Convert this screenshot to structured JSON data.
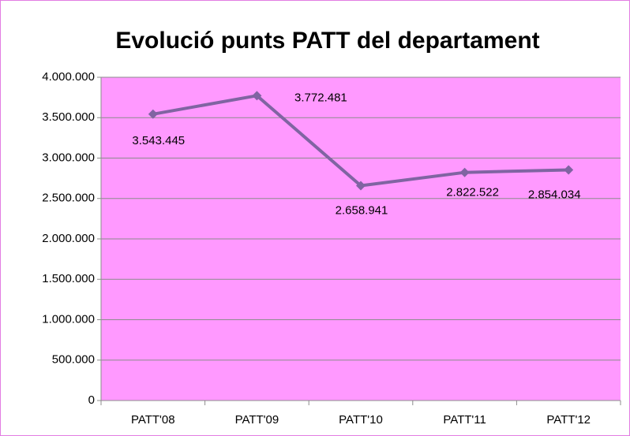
{
  "chart_data": {
    "type": "line",
    "title": "Evolució punts PATT del departament",
    "categories": [
      "PATT'08",
      "PATT'09",
      "PATT'10",
      "PATT'11",
      "PATT'12"
    ],
    "values": [
      3543445,
      3772481,
      2658941,
      2822522,
      2854034
    ],
    "value_labels": [
      "3.543.445",
      "3.772.481",
      "2.658.941",
      "2.822.522",
      "2.854.034"
    ],
    "color": "#8064a2",
    "plot_background": "#ff99ff",
    "grid": true,
    "ylim": [
      0,
      4000000
    ],
    "yticks": [
      0,
      {
        "value": 500000,
        "label": "500.000"
      },
      {
        "value": 1000000,
        "label": "1.000.000"
      },
      {
        "value": 1500000,
        "label": "1.500.000"
      },
      {
        "value": 2000000,
        "label": "2.000.000"
      },
      {
        "value": 2500000,
        "label": "2.500.000"
      },
      {
        "value": 3000000,
        "label": "3.000.000"
      },
      {
        "value": 3500000,
        "label": "3.500.000"
      },
      {
        "value": 4000000,
        "label": "4.000.000"
      }
    ]
  }
}
